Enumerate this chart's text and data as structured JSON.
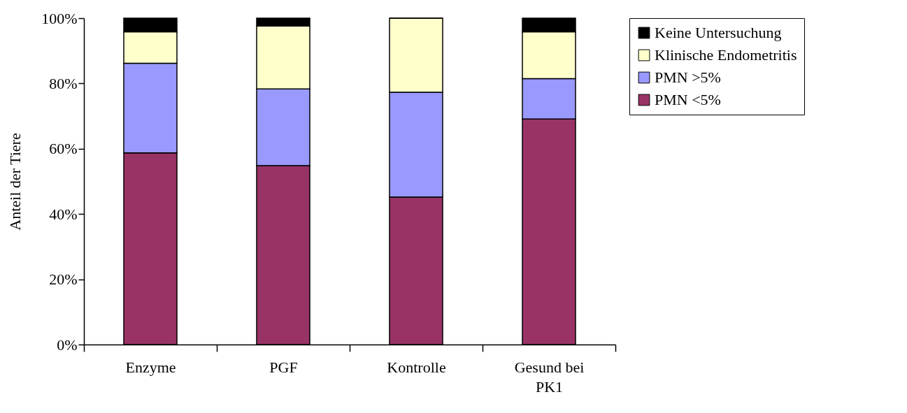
{
  "chart_data": {
    "type": "bar",
    "stacked": true,
    "ylabel": "Anteil der Tiere",
    "categories": [
      "Enzyme",
      "PGF",
      "Kontrolle",
      "Gesund bei PK1"
    ],
    "series": [
      {
        "name": "PMN <5%",
        "color": "#993366",
        "values": [
          58.7,
          54.8,
          45.2,
          69.1
        ]
      },
      {
        "name": "PMN >5%",
        "color": "#9999ff",
        "values": [
          27.5,
          23.5,
          32.1,
          12.4
        ]
      },
      {
        "name": "Klinische Endometritis",
        "color": "#ffffcc",
        "values": [
          9.6,
          19.3,
          22.7,
          14.3
        ]
      },
      {
        "name": "Keine Untersuchung",
        "color": "#000000",
        "values": [
          4.2,
          2.4,
          0,
          4.2
        ]
      }
    ],
    "ylim": [
      0,
      100
    ],
    "yticks": [
      {
        "value": 0,
        "label": "0%"
      },
      {
        "value": 20,
        "label": "20%"
      },
      {
        "value": 40,
        "label": "40%"
      },
      {
        "value": 60,
        "label": "60%"
      },
      {
        "value": 80,
        "label": "80%"
      },
      {
        "value": 100,
        "label": "100%"
      }
    ],
    "grid": false,
    "legend": "right"
  }
}
